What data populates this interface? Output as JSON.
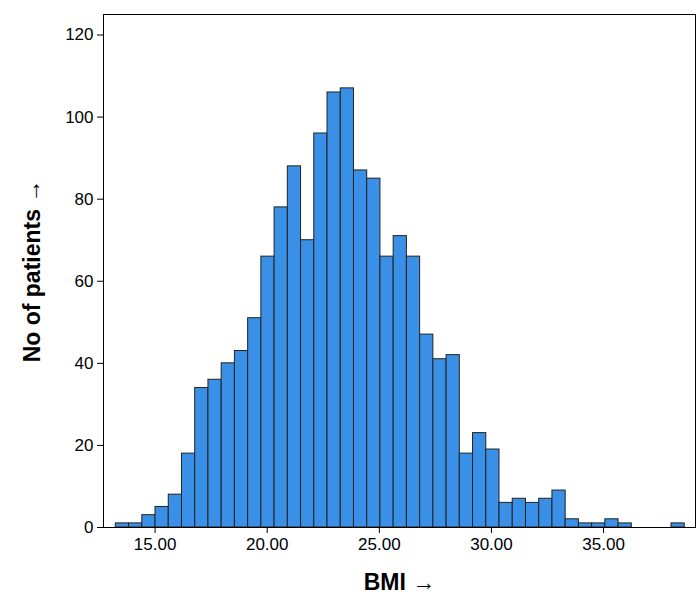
{
  "chart_data": {
    "type": "histogram",
    "xlabel": "BMI",
    "ylabel": "No of patients",
    "bins": [
      13.25,
      13.84,
      14.43,
      15.02,
      15.61,
      16.2,
      16.79,
      17.38,
      17.97,
      18.56,
      19.15,
      19.74,
      20.33,
      20.92,
      21.51,
      22.1,
      22.69,
      23.28,
      23.87,
      24.46,
      25.05,
      25.64,
      26.23,
      26.82,
      27.41,
      28.0,
      28.59,
      29.18,
      29.77,
      30.36,
      30.95,
      31.54,
      32.13,
      32.72,
      33.31,
      33.9,
      34.49,
      35.08,
      35.67,
      36.26,
      36.85,
      37.44,
      38.03,
      38.62
    ],
    "values": [
      1,
      1,
      3,
      5,
      8,
      18,
      34,
      36,
      40,
      43,
      51,
      66,
      78,
      88,
      70,
      96,
      106,
      107,
      87,
      85,
      66,
      71,
      66,
      47,
      41,
      42,
      18,
      23,
      19,
      6,
      7,
      6,
      7,
      9,
      2,
      1,
      1,
      2,
      1,
      0,
      0,
      0,
      1
    ],
    "color": "#3a90e6",
    "xlim": [
      12.7,
      39.1
    ],
    "xticks": [
      {
        "value": 15,
        "label": "15.00"
      },
      {
        "value": 20,
        "label": "20.00"
      },
      {
        "value": 25,
        "label": "25.00"
      },
      {
        "value": 30,
        "label": "30.00"
      },
      {
        "value": 35,
        "label": "35.00"
      }
    ],
    "ylim": [
      0,
      125
    ],
    "yticks": [
      0,
      20,
      40,
      60,
      80,
      100,
      120
    ],
    "grid": false
  }
}
